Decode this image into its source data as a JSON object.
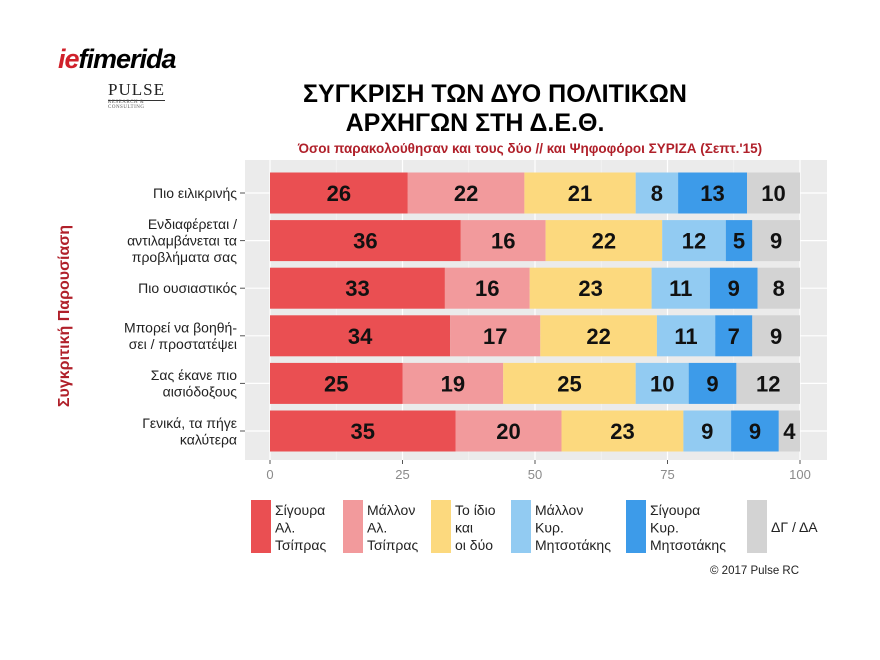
{
  "logo": {
    "brand_prefix": "ie",
    "brand_rest": "fimerida",
    "partner": "PULSE",
    "partner_tag": "RESEARCH & CONSULTING"
  },
  "title_line1": "ΣΥΓΚΡΙΣΗ ΤΩΝ ΔΥΟ ΠΟΛΙΤΙΚΩΝ",
  "title_line2": "ΑΡΧΗΓΩΝ ΣΤΗ Δ.Ε.Θ.",
  "subtitle": "Όσοι παρακολούθησαν και τους δύο // και Ψηφοφόροι ΣΥΡΙΖΑ (Σεπτ.'15)",
  "copyright": "© 2017 Pulse RC",
  "chart_data": {
    "type": "bar",
    "orientation": "horizontal-stacked",
    "ylabel": "Συγκριτική Παρουσίαση",
    "xlim": [
      0,
      100
    ],
    "xticks": [
      0,
      25,
      50,
      75,
      100
    ],
    "grid": true,
    "legend_position": "bottom",
    "categories": [
      "Πιο ειλικρινής",
      "Ενδιαφέρεται /\nαντιλαμβάνεται τα\nπροβλήματα σας",
      "Πιο ουσιαστικός",
      "Μπορεί να βοηθή-\nσει / προστατέψει",
      "Σας έκανε πιο\nαισιόδοξους",
      "Γενικά, τα πήγε\nκαλύτερα"
    ],
    "series": [
      {
        "name": "Σίγουρα\nΑλ.\nΤσίπρας",
        "color": "#ea4f52",
        "values": [
          26,
          36,
          33,
          34,
          25,
          35
        ]
      },
      {
        "name": "Μάλλον\nΑλ.\nΤσίπρας",
        "color": "#f29a9c",
        "values": [
          22,
          16,
          16,
          17,
          19,
          20
        ]
      },
      {
        "name": "Το ίδιο\nκαι\nοι δύο",
        "color": "#fcd97e",
        "values": [
          21,
          22,
          23,
          22,
          25,
          23
        ]
      },
      {
        "name": "Μάλλον\nΚυρ.\nΜητσοτάκης",
        "color": "#92cbf2",
        "values": [
          8,
          12,
          11,
          11,
          10,
          9
        ]
      },
      {
        "name": "Σίγουρα\nΚυρ.\nΜητσοτάκης",
        "color": "#3d9be9",
        "values": [
          13,
          5,
          9,
          7,
          9,
          9
        ]
      },
      {
        "name": "ΔΓ / ΔΑ",
        "color": "#d3d3d3",
        "values": [
          10,
          9,
          8,
          9,
          12,
          4
        ]
      }
    ]
  }
}
